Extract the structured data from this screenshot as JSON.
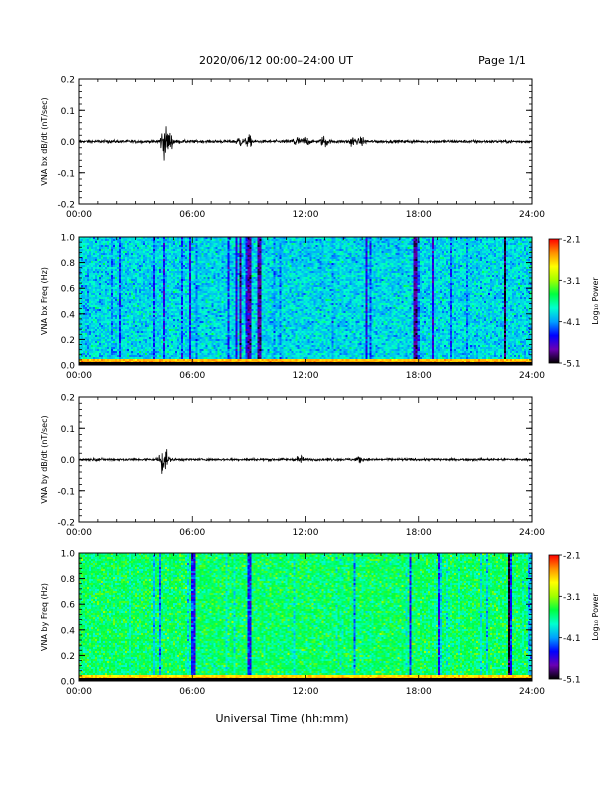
{
  "header": {
    "title": "2020/06/12  00:00–24:00 UT",
    "page_label": "Page 1/1"
  },
  "footer": {
    "xlabel": "Universal Time (hh:mm)"
  },
  "colors": {
    "trace": "#000000",
    "axes": "#000000",
    "colormap": [
      "#000000",
      "#6a00b4",
      "#0000ff",
      "#00a0ff",
      "#00ffd0",
      "#00ff40",
      "#a0ff00",
      "#ffff00",
      "#ff9000",
      "#ff0000"
    ]
  },
  "chart_data": [
    {
      "type": "line",
      "name": "bx-derivative",
      "ylabel": "VNA bx dB/dt (nT/sec)",
      "x_ticks": [
        "00:00",
        "06:00",
        "12:00",
        "18:00",
        "24:00"
      ],
      "xlim": [
        0,
        24
      ],
      "ylim": [
        -0.2,
        0.2
      ],
      "y_ticks": [
        "0.2",
        "0.1",
        "0.0",
        "-0.1",
        "-0.2"
      ],
      "y_tick_values": [
        0.2,
        0.1,
        0.0,
        -0.1,
        -0.2
      ],
      "grid": false,
      "baseline_amplitude": 0.005,
      "bursts": [
        {
          "t": 4.5,
          "amplitude": 0.05
        },
        {
          "t": 4.8,
          "amplitude": 0.03
        },
        {
          "t": 8.5,
          "amplitude": 0.015
        },
        {
          "t": 9.0,
          "amplitude": 0.018
        },
        {
          "t": 11.5,
          "amplitude": 0.02
        },
        {
          "t": 12.0,
          "amplitude": 0.015
        },
        {
          "t": 13.0,
          "amplitude": 0.02
        },
        {
          "t": 14.5,
          "amplitude": 0.015
        },
        {
          "t": 15.0,
          "amplitude": 0.012
        }
      ]
    },
    {
      "type": "heatmap",
      "name": "bx-spectrogram",
      "ylabel": "VNA bx Freq (Hz)",
      "x_ticks": [
        "00:00",
        "06:00",
        "12:00",
        "18:00",
        "24:00"
      ],
      "xlim": [
        0,
        24
      ],
      "ylim": [
        0.0,
        1.0
      ],
      "y_ticks": [
        "1.0",
        "0.8",
        "0.6",
        "0.4",
        "0.2",
        "0.0"
      ],
      "y_tick_values": [
        1.0,
        0.8,
        0.6,
        0.4,
        0.2,
        0.0
      ],
      "colorbar": {
        "label": "Log₁₀ Power",
        "ticks": [
          "-2.1",
          "-3.1",
          "-4.1",
          "-5.1"
        ],
        "tick_values": [
          -2.1,
          -3.1,
          -4.1,
          -5.1
        ],
        "range": [
          -5.1,
          -2.1
        ]
      },
      "background_level": -3.9,
      "low_freq_band_level": -2.6,
      "dark_stripes_t": [
        8.5,
        9.0,
        9.5,
        17.8,
        22.5
      ]
    },
    {
      "type": "line",
      "name": "by-derivative",
      "ylabel": "VNA by dB/dt (nT/sec)",
      "x_ticks": [
        "00:00",
        "06:00",
        "12:00",
        "18:00",
        "24:00"
      ],
      "xlim": [
        0,
        24
      ],
      "ylim": [
        -0.2,
        0.2
      ],
      "y_ticks": [
        "0.2",
        "0.1",
        "0.0",
        "-0.1",
        "-0.2"
      ],
      "y_tick_values": [
        0.2,
        0.1,
        0.0,
        -0.1,
        -0.2
      ],
      "grid": false,
      "baseline_amplitude": 0.004,
      "bursts": [
        {
          "t": 4.4,
          "amplitude": 0.035
        },
        {
          "t": 4.6,
          "amplitude": 0.02
        },
        {
          "t": 11.7,
          "amplitude": 0.012
        },
        {
          "t": 14.8,
          "amplitude": 0.01
        }
      ]
    },
    {
      "type": "heatmap",
      "name": "by-spectrogram",
      "ylabel": "VNA by Freq (Hz)",
      "x_ticks": [
        "00:00",
        "06:00",
        "12:00",
        "18:00",
        "24:00"
      ],
      "xlim": [
        0,
        24
      ],
      "ylim": [
        0.0,
        1.0
      ],
      "y_ticks": [
        "1.0",
        "0.8",
        "0.6",
        "0.4",
        "0.2",
        "0.0"
      ],
      "y_tick_values": [
        1.0,
        0.8,
        0.6,
        0.4,
        0.2,
        0.0
      ],
      "colorbar": {
        "label": "Log₁₀ Power",
        "ticks": [
          "-2.1",
          "-3.1",
          "-4.1",
          "-5.1"
        ],
        "tick_values": [
          -2.1,
          -3.1,
          -4.1,
          -5.1
        ],
        "range": [
          -5.1,
          -2.1
        ]
      },
      "background_level": -3.5,
      "low_freq_band_level": -2.7,
      "dark_stripes_t": [
        6.0,
        9.0,
        17.5,
        19.0,
        22.8
      ]
    }
  ]
}
